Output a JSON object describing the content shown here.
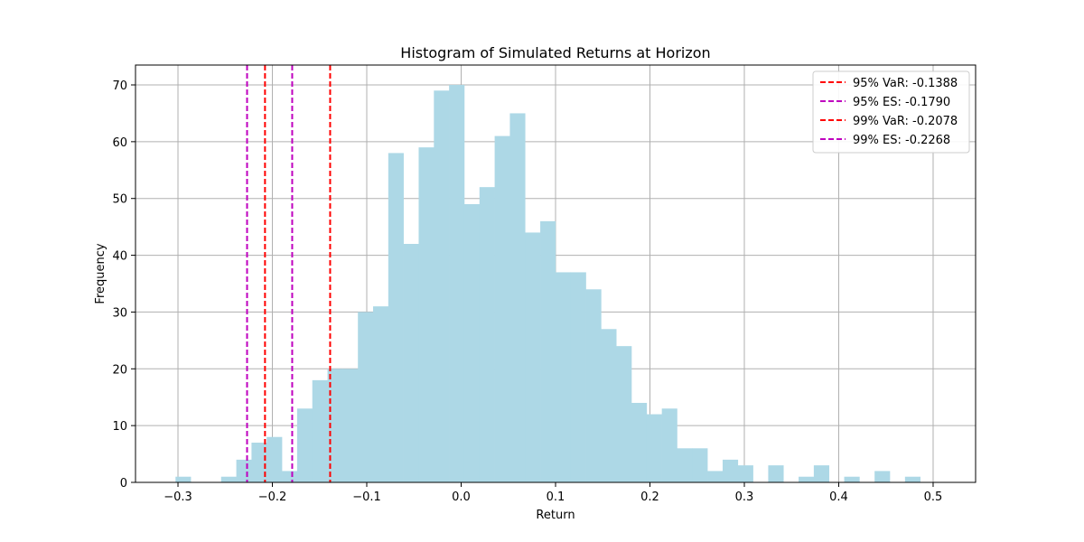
{
  "chart_data": {
    "type": "bar",
    "title": "Histogram of Simulated Returns at Horizon",
    "xlabel": "Return",
    "ylabel": "Frequency",
    "xlim": [
      -0.345,
      0.545
    ],
    "ylim": [
      0,
      73.5
    ],
    "x_ticks": [
      -0.3,
      -0.2,
      -0.1,
      0.0,
      0.1,
      0.2,
      0.3,
      0.4,
      0.5
    ],
    "x_tick_labels": [
      "−0.3",
      "−0.2",
      "−0.1",
      "0.0",
      "0.1",
      "0.2",
      "0.3",
      "0.4",
      "0.5"
    ],
    "y_ticks": [
      0,
      10,
      20,
      30,
      40,
      50,
      60,
      70
    ],
    "y_tick_labels": [
      "0",
      "10",
      "20",
      "30",
      "40",
      "50",
      "60",
      "70"
    ],
    "grid": true,
    "legend_position": "top-right",
    "bar_color": "#add8e6",
    "bins": {
      "start": -0.3026,
      "width": 0.0161,
      "counts": [
        1,
        0,
        0,
        1,
        4,
        7,
        8,
        2,
        13,
        18,
        20,
        20,
        30,
        31,
        58,
        42,
        59,
        69,
        70,
        49,
        52,
        61,
        65,
        44,
        46,
        37,
        37,
        34,
        27,
        24,
        14,
        12,
        13,
        6,
        6,
        2,
        4,
        3,
        0,
        3,
        0,
        1,
        3,
        0,
        1,
        0,
        2,
        0,
        1
      ]
    },
    "lines": [
      {
        "name": "95% VaR: -0.1388",
        "x": -0.1388,
        "color": "#ff0000",
        "style": "dashed"
      },
      {
        "name": "95% ES: -0.1790",
        "x": -0.179,
        "color": "#bf00bf",
        "style": "dashed"
      },
      {
        "name": "99% VaR: -0.2078",
        "x": -0.2078,
        "color": "#ff0000",
        "style": "dashed"
      },
      {
        "name": "99% ES: -0.2268",
        "x": -0.2268,
        "color": "#bf00bf",
        "style": "dashed"
      }
    ]
  }
}
